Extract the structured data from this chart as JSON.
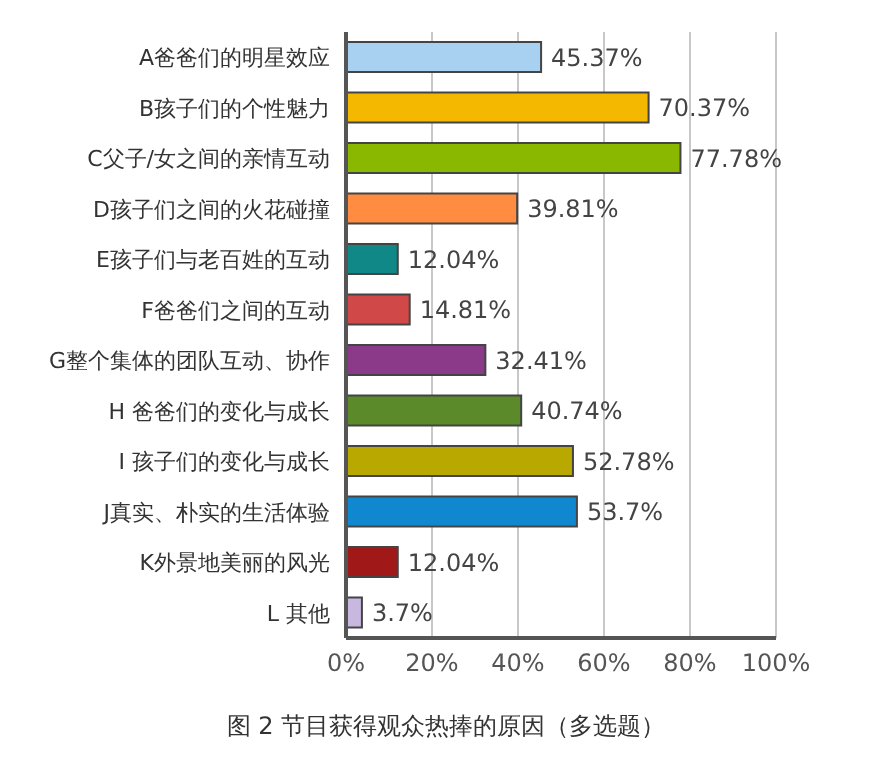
{
  "chart_data": {
    "type": "bar",
    "orientation": "horizontal",
    "title": "图 2 节目获得观众热捧的原因（多选题）",
    "categories": [
      "A爸爸们的明星效应",
      "B孩子们的个性魅力",
      "C父子/女之间的亲情互动",
      "D孩子们之间的火花碰撞",
      "E孩子们与老百姓的互动",
      "F爸爸们之间的互动",
      "G整个集体的团队互动、协作",
      "H 爸爸们的变化与成长",
      "I 孩子们的变化与成长",
      "J真实、朴实的生活体验",
      "K外景地美丽的风光",
      "L 其他"
    ],
    "values": [
      45.37,
      70.37,
      77.78,
      39.81,
      12.04,
      14.81,
      32.41,
      40.74,
      52.78,
      53.7,
      12.04,
      3.7
    ],
    "value_labels": [
      "45.37%",
      "70.37%",
      "77.78%",
      "39.81%",
      "12.04%",
      "14.81%",
      "32.41%",
      "40.74%",
      "52.78%",
      "53.7%",
      "12.04%",
      "3.7%"
    ],
    "colors": [
      "#a8d0f0",
      "#f5b800",
      "#8ab800",
      "#ff8c40",
      "#108888",
      "#d04848",
      "#8a3a88",
      "#5a8a2a",
      "#b8a800",
      "#1088d0",
      "#a01818",
      "#c8b8e0"
    ],
    "xlim": [
      0,
      100
    ],
    "xticks": [
      {
        "value": 0,
        "label": "0%"
      },
      {
        "value": 20,
        "label": "20%"
      },
      {
        "value": 40,
        "label": "40%"
      },
      {
        "value": 60,
        "label": "60%"
      },
      {
        "value": 80,
        "label": "80%"
      },
      {
        "value": 100,
        "label": "100%"
      }
    ],
    "grid": "x"
  }
}
